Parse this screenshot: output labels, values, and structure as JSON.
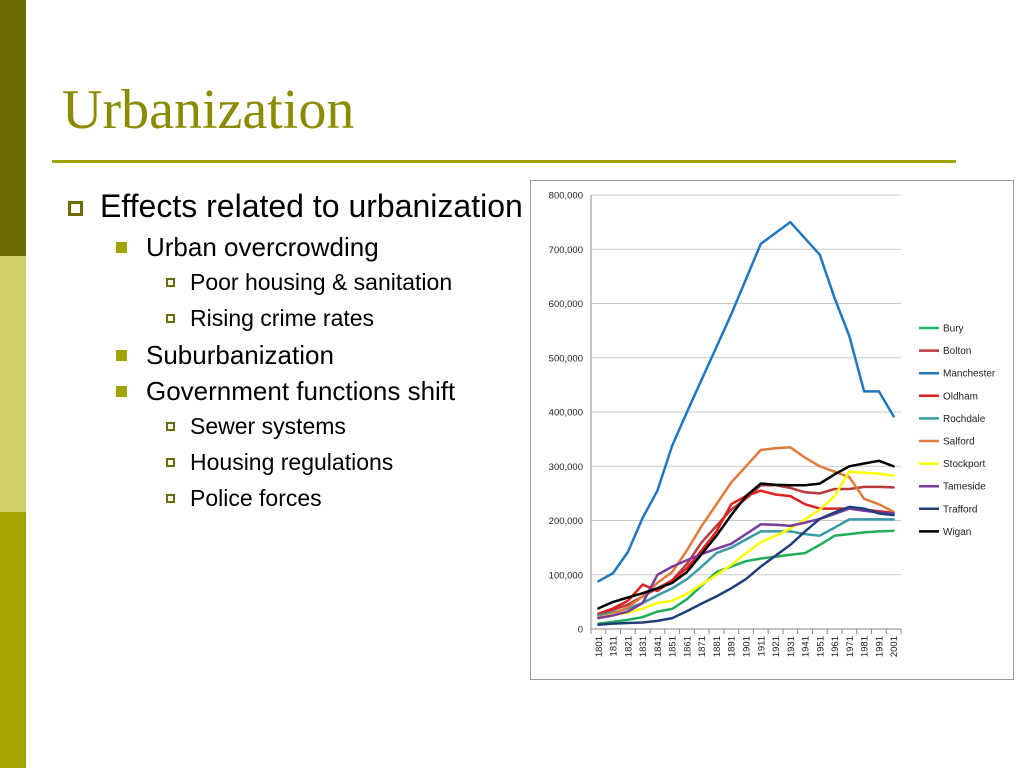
{
  "slide": {
    "title": "Urbanization",
    "bullets": [
      {
        "text": "Effects related to urbanization",
        "level": 1
      },
      {
        "text": "Urban overcrowding",
        "level": 2
      },
      {
        "text": "Poor housing & sanitation",
        "level": 3
      },
      {
        "text": "Rising crime rates",
        "level": 3
      },
      {
        "text": "Suburbanization",
        "level": 2
      },
      {
        "text": "Government functions shift",
        "level": 2
      },
      {
        "text": "Sewer systems",
        "level": 3
      },
      {
        "text": "Housing regulations",
        "level": 3
      },
      {
        "text": "Police forces",
        "level": 3
      }
    ],
    "colors": {
      "accent_dark": "#6b6b00",
      "accent": "#a3a300",
      "accent_light": "#cfcf6a",
      "title": "#8b8b00"
    }
  },
  "chart_data": {
    "type": "line",
    "title": "",
    "xlabel": "",
    "ylabel": "",
    "x": [
      "1801",
      "1811",
      "1821",
      "1831",
      "1841",
      "1851",
      "1861",
      "1871",
      "1881",
      "1891",
      "1901",
      "1911",
      "1921",
      "1931",
      "1941",
      "1951",
      "1961",
      "1971",
      "1981",
      "1991",
      "2001"
    ],
    "ylim": [
      0,
      800000
    ],
    "yticks": [
      0,
      100000,
      200000,
      300000,
      400000,
      500000,
      600000,
      700000,
      800000
    ],
    "ytick_labels": [
      "0",
      "100,000",
      "200,000",
      "300,000",
      "400,000",
      "500,000",
      "600,000",
      "700,000",
      "800,000"
    ],
    "grid": "horizontal",
    "legend_position": "right",
    "series": [
      {
        "name": "Bury",
        "color": "#1fae5a",
        "values": [
          10000,
          13000,
          17000,
          22000,
          32000,
          37000,
          55000,
          80000,
          105000,
          115000,
          125000,
          130000,
          133000,
          137000,
          140000,
          155000,
          172000,
          175000,
          178000,
          180000,
          181000
        ]
      },
      {
        "name": "Bolton",
        "color": "#b83a3a",
        "values": [
          28000,
          35000,
          45000,
          60000,
          75000,
          90000,
          120000,
          160000,
          190000,
          220000,
          240000,
          265000,
          265000,
          260000,
          252000,
          250000,
          258000,
          258000,
          262000,
          262000,
          261000
        ]
      },
      {
        "name": "Manchester",
        "color": "#1f77c0",
        "values": [
          88000,
          103000,
          142000,
          205000,
          255000,
          338000,
          400000,
          460000,
          520000,
          580000,
          645000,
          710000,
          730000,
          750000,
          720000,
          690000,
          610000,
          540000,
          438000,
          438000,
          392000
        ]
      },
      {
        "name": "Oldham",
        "color": "#e02020",
        "values": [
          28000,
          38000,
          52000,
          82000,
          70000,
          90000,
          112000,
          145000,
          180000,
          230000,
          245000,
          255000,
          248000,
          245000,
          230000,
          222000,
          222000,
          222000,
          220000,
          217000,
          214000
        ]
      },
      {
        "name": "Rochdale",
        "color": "#3a9aa8",
        "values": [
          25000,
          30000,
          38000,
          48000,
          62000,
          75000,
          92000,
          115000,
          140000,
          150000,
          165000,
          180000,
          180000,
          180000,
          175000,
          172000,
          187000,
          202000,
          202000,
          202000,
          202000
        ]
      },
      {
        "name": "Salford",
        "color": "#e07b39",
        "values": [
          22000,
          28000,
          40000,
          60000,
          85000,
          105000,
          145000,
          190000,
          230000,
          270000,
          300000,
          330000,
          333000,
          335000,
          316000,
          300000,
          290000,
          280000,
          240000,
          230000,
          216000
        ]
      },
      {
        "name": "Stockport",
        "color": "#ffff00",
        "values": [
          20000,
          26000,
          30000,
          38000,
          48000,
          52000,
          65000,
          82000,
          100000,
          118000,
          140000,
          160000,
          172000,
          185000,
          202000,
          220000,
          245000,
          290000,
          288000,
          286000,
          283000
        ]
      },
      {
        "name": "Tameside",
        "color": "#7b3a9e",
        "values": [
          20000,
          25000,
          32000,
          48000,
          100000,
          115000,
          127000,
          138000,
          148000,
          157000,
          175000,
          193000,
          192000,
          190000,
          196000,
          203000,
          212000,
          222000,
          218000,
          215000,
          213000
        ]
      },
      {
        "name": "Trafford",
        "color": "#1f3f7a",
        "values": [
          8000,
          10000,
          11000,
          12000,
          15000,
          20000,
          33000,
          47000,
          60000,
          75000,
          92000,
          115000,
          135000,
          155000,
          180000,
          203000,
          215000,
          225000,
          222000,
          213000,
          210000
        ]
      },
      {
        "name": "Wigan",
        "color": "#000000",
        "values": [
          38000,
          50000,
          58000,
          66000,
          75000,
          85000,
          105000,
          138000,
          172000,
          210000,
          245000,
          268000,
          266000,
          265000,
          265000,
          268000,
          285000,
          300000,
          305000,
          310000,
          300000
        ]
      }
    ]
  }
}
